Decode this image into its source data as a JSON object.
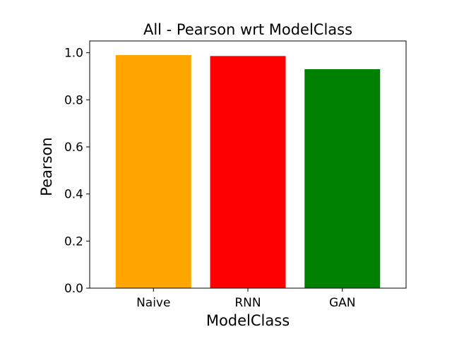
{
  "chart_data": {
    "type": "bar",
    "title": "All - Pearson wrt ModelClass",
    "xlabel": "ModelClass",
    "ylabel": "Pearson",
    "categories": [
      "Naive",
      "RNN",
      "GAN"
    ],
    "values": [
      0.99,
      0.986,
      0.93
    ],
    "colors": [
      "#ffa500",
      "#ff0000",
      "#008000"
    ],
    "ylim": [
      0,
      1.05
    ],
    "yticks": [
      0.0,
      0.2,
      0.4,
      0.6,
      0.8,
      1.0
    ],
    "ytick_labels": [
      "0.0",
      "0.2",
      "0.4",
      "0.6",
      "0.8",
      "1.0"
    ],
    "grid": false,
    "legend": "none"
  }
}
